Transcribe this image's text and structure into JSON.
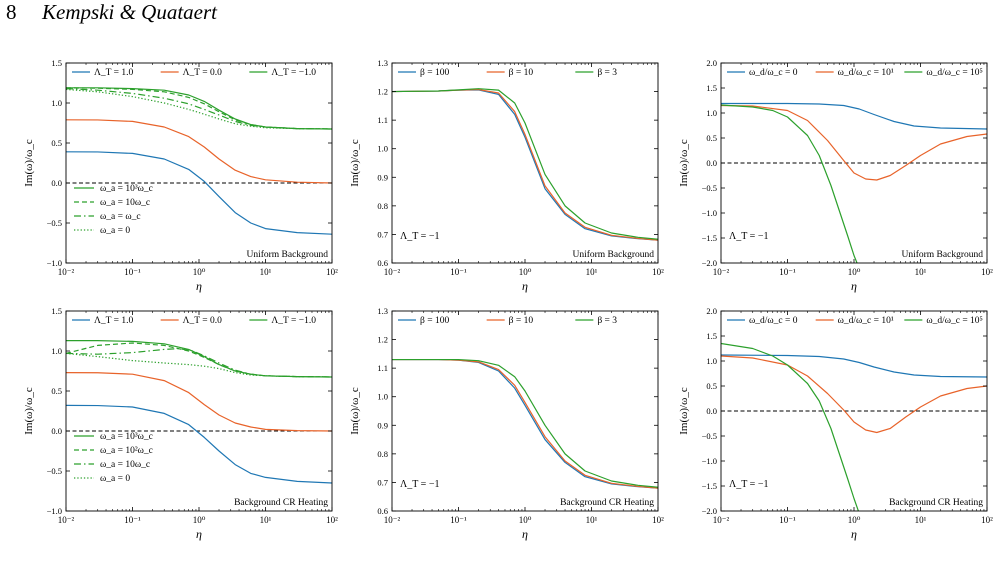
{
  "header": {
    "page_number": "8",
    "authors": "Kempski & Quataert"
  },
  "colors": {
    "blue": "#1f77b4",
    "orange": "#e8632a",
    "green": "#2ca02c",
    "zero_line": "#000000"
  },
  "chart_data": [
    {
      "type": "line",
      "xscale": "log",
      "xlim": [
        0.01,
        100
      ],
      "xticklabels": [
        "10⁻²",
        "10⁻¹",
        "10⁰",
        "10¹",
        "10²"
      ],
      "ylim": [
        -1.0,
        1.5
      ],
      "yticks": [
        -1.0,
        -0.5,
        0.0,
        0.5,
        1.0,
        1.5
      ],
      "yticklabels": [
        "−1.0",
        "−0.5",
        "0.0",
        "0.5",
        "1.0",
        "1.5"
      ],
      "xlabel": "η",
      "ylabel": "Im(ω)/ω_c",
      "legend_top": [
        "Λ_T = 1.0",
        "Λ_T = 0.0",
        "Λ_T = −1.0"
      ],
      "legend_styles": [
        "ω_a = 10³ω_c",
        "ω_a = 10ω_c",
        "ω_a = ω_c",
        "ω_a = 0"
      ],
      "annotation": "Uniform Background",
      "zero_line": true,
      "series": [
        {
          "name": "Λ_T = 1.0",
          "color": "blue",
          "dash": "solid",
          "x": [
            0.01,
            0.03,
            0.1,
            0.3,
            0.7,
            1.2,
            2,
            3.5,
            6,
            10,
            30,
            100
          ],
          "y": [
            0.39,
            0.388,
            0.37,
            0.3,
            0.17,
            0.02,
            -0.17,
            -0.37,
            -0.5,
            -0.57,
            -0.62,
            -0.64
          ]
        },
        {
          "name": "Λ_T = 0.0",
          "color": "orange",
          "dash": "solid",
          "x": [
            0.01,
            0.03,
            0.1,
            0.3,
            0.7,
            1.2,
            2,
            3.5,
            6,
            10,
            30,
            100
          ],
          "y": [
            0.79,
            0.788,
            0.77,
            0.7,
            0.58,
            0.45,
            0.3,
            0.16,
            0.08,
            0.04,
            0.01,
            0.0
          ]
        },
        {
          "name": "Λ_T = −1.0",
          "color": "green",
          "dash": "solid",
          "x": [
            0.01,
            0.03,
            0.1,
            0.3,
            0.7,
            1.2,
            2,
            3.5,
            6,
            10,
            30,
            100
          ],
          "y": [
            1.19,
            1.19,
            1.18,
            1.16,
            1.1,
            1.02,
            0.91,
            0.8,
            0.73,
            0.7,
            0.68,
            0.675
          ]
        },
        {
          "name": "ω_a = 10ω_c",
          "color": "green",
          "dash": "dashed",
          "x": [
            0.01,
            0.03,
            0.1,
            0.3,
            0.7,
            1.2,
            2,
            3.5,
            6,
            10,
            30,
            100
          ],
          "y": [
            1.19,
            1.185,
            1.17,
            1.14,
            1.07,
            0.99,
            0.89,
            0.79,
            0.73,
            0.7,
            0.68,
            0.675
          ]
        },
        {
          "name": "ω_a = ω_c",
          "color": "green",
          "dash": "dashdot",
          "x": [
            0.01,
            0.03,
            0.1,
            0.3,
            0.7,
            1.2,
            2,
            3.5,
            6,
            10,
            30,
            100
          ],
          "y": [
            1.18,
            1.16,
            1.12,
            1.06,
            0.99,
            0.92,
            0.85,
            0.77,
            0.72,
            0.7,
            0.68,
            0.675
          ]
        },
        {
          "name": "ω_a = 0",
          "color": "green",
          "dash": "dotted",
          "x": [
            0.01,
            0.03,
            0.1,
            0.3,
            0.7,
            1.2,
            2,
            3.5,
            6,
            10,
            30,
            100
          ],
          "y": [
            1.17,
            1.14,
            1.08,
            1.0,
            0.92,
            0.86,
            0.8,
            0.74,
            0.71,
            0.69,
            0.68,
            0.675
          ]
        }
      ]
    },
    {
      "type": "line",
      "xscale": "log",
      "xlim": [
        0.01,
        100
      ],
      "xticklabels": [
        "10⁻²",
        "10⁻¹",
        "10⁰",
        "10¹",
        "10²"
      ],
      "ylim": [
        0.6,
        1.3
      ],
      "yticks": [
        0.6,
        0.7,
        0.8,
        0.9,
        1.0,
        1.1,
        1.2,
        1.3
      ],
      "yticklabels": [
        "0.6",
        "0.7",
        "0.8",
        "0.9",
        "1.0",
        "1.1",
        "1.2",
        "1.3"
      ],
      "xlabel": "η",
      "ylabel": "Im(ω)/ω_c",
      "legend_top": [
        "β = 100",
        "β = 10",
        "β = 3"
      ],
      "annotation": "Uniform Background",
      "side_label": "Λ_T = −1",
      "zero_line": false,
      "series": [
        {
          "name": "β = 100",
          "color": "blue",
          "dash": "solid",
          "x": [
            0.01,
            0.05,
            0.1,
            0.2,
            0.4,
            0.7,
            1,
            2,
            4,
            8,
            20,
            50,
            100
          ],
          "y": [
            1.2,
            1.202,
            1.205,
            1.206,
            1.19,
            1.12,
            1.04,
            0.86,
            0.77,
            0.72,
            0.695,
            0.685,
            0.68
          ]
        },
        {
          "name": "β = 10",
          "color": "orange",
          "dash": "solid",
          "x": [
            0.01,
            0.05,
            0.1,
            0.2,
            0.4,
            0.7,
            1,
            2,
            4,
            8,
            20,
            50,
            100
          ],
          "y": [
            1.2,
            1.202,
            1.205,
            1.207,
            1.195,
            1.13,
            1.05,
            0.87,
            0.775,
            0.725,
            0.697,
            0.686,
            0.68
          ]
        },
        {
          "name": "β = 3",
          "color": "green",
          "dash": "solid",
          "x": [
            0.01,
            0.05,
            0.1,
            0.2,
            0.4,
            0.7,
            1,
            2,
            4,
            8,
            20,
            50,
            100
          ],
          "y": [
            1.2,
            1.202,
            1.206,
            1.21,
            1.205,
            1.16,
            1.09,
            0.91,
            0.8,
            0.74,
            0.705,
            0.69,
            0.683
          ]
        }
      ]
    },
    {
      "type": "line",
      "xscale": "log",
      "xlim": [
        0.01,
        100
      ],
      "xticklabels": [
        "10⁻²",
        "10⁻¹",
        "10⁰",
        "10¹",
        "10²"
      ],
      "ylim": [
        -2.0,
        2.0
      ],
      "yticks": [
        -2.0,
        -1.5,
        -1.0,
        -0.5,
        0.0,
        0.5,
        1.0,
        1.5,
        2.0
      ],
      "yticklabels": [
        "−2.0",
        "−1.5",
        "−1.0",
        "−0.5",
        "0.0",
        "0.5",
        "1.0",
        "1.5",
        "2.0"
      ],
      "xlabel": "η",
      "ylabel": "Im(ω)/ω_c",
      "legend_top": [
        "ω_d/ω_c = 0",
        "ω_d/ω_c = 10¹",
        "ω_d/ω_c = 10⁵"
      ],
      "annotation": "Uniform Background",
      "side_label": "Λ_T = −1",
      "zero_line": true,
      "series": [
        {
          "name": "ω_d/ω_c = 0",
          "color": "blue",
          "dash": "solid",
          "x": [
            0.01,
            0.1,
            0.3,
            0.7,
            1.2,
            2,
            4,
            8,
            20,
            100
          ],
          "y": [
            1.19,
            1.19,
            1.18,
            1.15,
            1.08,
            0.97,
            0.83,
            0.74,
            0.7,
            0.68
          ]
        },
        {
          "name": "ω_d/ω_c = 10¹",
          "color": "orange",
          "dash": "solid",
          "x": [
            0.01,
            0.03,
            0.1,
            0.2,
            0.4,
            0.7,
            1,
            1.5,
            2.2,
            3.5,
            6,
            10,
            20,
            50,
            100
          ],
          "y": [
            1.15,
            1.14,
            1.05,
            0.85,
            0.45,
            0.05,
            -0.2,
            -0.32,
            -0.34,
            -0.25,
            -0.05,
            0.15,
            0.38,
            0.53,
            0.58
          ]
        },
        {
          "name": "ω_d/ω_c = 10⁵",
          "color": "green",
          "dash": "solid",
          "x": [
            0.01,
            0.03,
            0.06,
            0.1,
            0.2,
            0.3,
            0.45,
            0.6,
            0.8,
            1.0,
            1.15
          ],
          "y": [
            1.16,
            1.12,
            1.05,
            0.92,
            0.55,
            0.15,
            -0.45,
            -0.95,
            -1.45,
            -1.85,
            -2.05
          ]
        }
      ]
    },
    {
      "type": "line",
      "xscale": "log",
      "xlim": [
        0.01,
        100
      ],
      "xticklabels": [
        "10⁻²",
        "10⁻¹",
        "10⁰",
        "10¹",
        "10²"
      ],
      "ylim": [
        -1.0,
        1.5
      ],
      "yticks": [
        -1.0,
        -0.5,
        0.0,
        0.5,
        1.0,
        1.5
      ],
      "yticklabels": [
        "−1.0",
        "−0.5",
        "0.0",
        "0.5",
        "1.0",
        "1.5"
      ],
      "xlabel": "η",
      "ylabel": "Im(ω)/ω_c",
      "legend_top": [
        "Λ_T = 1.0",
        "Λ_T = 0.0",
        "Λ_T = −1.0"
      ],
      "legend_styles": [
        "ω_a = 10³ω_c",
        "ω_a = 10²ω_c",
        "ω_a = 10ω_c",
        "ω_a = 0"
      ],
      "annotation": "Background CR Heating",
      "zero_line": true,
      "series": [
        {
          "name": "Λ_T = 1.0",
          "color": "blue",
          "dash": "solid",
          "x": [
            0.01,
            0.03,
            0.1,
            0.3,
            0.7,
            1.2,
            2,
            3.5,
            6,
            10,
            30,
            100
          ],
          "y": [
            0.32,
            0.318,
            0.3,
            0.22,
            0.08,
            -0.08,
            -0.25,
            -0.42,
            -0.53,
            -0.58,
            -0.63,
            -0.65
          ]
        },
        {
          "name": "Λ_T = 0.0",
          "color": "orange",
          "dash": "solid",
          "x": [
            0.01,
            0.03,
            0.1,
            0.3,
            0.7,
            1.2,
            2,
            3.5,
            6,
            10,
            30,
            100
          ],
          "y": [
            0.73,
            0.728,
            0.71,
            0.63,
            0.48,
            0.33,
            0.2,
            0.1,
            0.05,
            0.02,
            0.005,
            0.0
          ]
        },
        {
          "name": "Λ_T = −1.0",
          "color": "green",
          "dash": "solid",
          "x": [
            0.01,
            0.03,
            0.1,
            0.3,
            0.7,
            1.2,
            2,
            3.5,
            6,
            10,
            30,
            100
          ],
          "y": [
            1.13,
            1.13,
            1.12,
            1.09,
            1.02,
            0.93,
            0.83,
            0.75,
            0.71,
            0.69,
            0.68,
            0.675
          ]
        },
        {
          "name": "ω_a = 10²ω_c",
          "color": "green",
          "dash": "dashed",
          "x": [
            0.01,
            0.03,
            0.1,
            0.3,
            0.7,
            1.2,
            2,
            3.5,
            6,
            10,
            30,
            100
          ],
          "y": [
            0.97,
            1.07,
            1.1,
            1.07,
            1.0,
            0.92,
            0.83,
            0.75,
            0.71,
            0.69,
            0.68,
            0.675
          ]
        },
        {
          "name": "ω_a = 10ω_c",
          "color": "green",
          "dash": "dashdot",
          "x": [
            0.01,
            0.03,
            0.1,
            0.3,
            0.5,
            0.8,
            1.2,
            2,
            3.5,
            6,
            10,
            30,
            100
          ],
          "y": [
            0.97,
            0.96,
            0.98,
            1.02,
            1.03,
            1.0,
            0.94,
            0.85,
            0.76,
            0.71,
            0.69,
            0.68,
            0.675
          ]
        },
        {
          "name": "ω_a = 0",
          "color": "green",
          "dash": "dotted",
          "x": [
            0.01,
            0.03,
            0.1,
            0.3,
            0.7,
            1.2,
            2,
            3.5,
            6,
            10,
            30,
            100
          ],
          "y": [
            0.97,
            0.93,
            0.88,
            0.85,
            0.83,
            0.81,
            0.78,
            0.73,
            0.7,
            0.69,
            0.68,
            0.675
          ]
        }
      ]
    },
    {
      "type": "line",
      "xscale": "log",
      "xlim": [
        0.01,
        100
      ],
      "xticklabels": [
        "10⁻²",
        "10⁻¹",
        "10⁰",
        "10¹",
        "10²"
      ],
      "ylim": [
        0.6,
        1.3
      ],
      "yticks": [
        0.6,
        0.7,
        0.8,
        0.9,
        1.0,
        1.1,
        1.2,
        1.3
      ],
      "yticklabels": [
        "0.6",
        "0.7",
        "0.8",
        "0.9",
        "1.0",
        "1.1",
        "1.2",
        "1.3"
      ],
      "xlabel": "η",
      "ylabel": "Im(ω)/ω_c",
      "legend_top": [
        "β = 100",
        "β = 10",
        "β = 3"
      ],
      "annotation": "Background CR Heating",
      "side_label": "Λ_T = −1",
      "zero_line": false,
      "series": [
        {
          "name": "β = 100",
          "color": "blue",
          "dash": "solid",
          "x": [
            0.01,
            0.05,
            0.1,
            0.2,
            0.4,
            0.7,
            1,
            2,
            4,
            8,
            20,
            50,
            100
          ],
          "y": [
            1.13,
            1.13,
            1.128,
            1.12,
            1.09,
            1.03,
            0.97,
            0.85,
            0.77,
            0.72,
            0.695,
            0.685,
            0.68
          ]
        },
        {
          "name": "β = 10",
          "color": "orange",
          "dash": "solid",
          "x": [
            0.01,
            0.05,
            0.1,
            0.2,
            0.4,
            0.7,
            1,
            2,
            4,
            8,
            20,
            50,
            100
          ],
          "y": [
            1.13,
            1.13,
            1.128,
            1.122,
            1.095,
            1.04,
            0.98,
            0.86,
            0.775,
            0.725,
            0.697,
            0.686,
            0.68
          ]
        },
        {
          "name": "β = 3",
          "color": "green",
          "dash": "solid",
          "x": [
            0.01,
            0.05,
            0.1,
            0.2,
            0.4,
            0.7,
            1,
            2,
            4,
            8,
            20,
            50,
            100
          ],
          "y": [
            1.13,
            1.13,
            1.13,
            1.126,
            1.11,
            1.07,
            1.02,
            0.9,
            0.8,
            0.74,
            0.705,
            0.69,
            0.683
          ]
        }
      ]
    },
    {
      "type": "line",
      "xscale": "log",
      "xlim": [
        0.01,
        100
      ],
      "xticklabels": [
        "10⁻²",
        "10⁻¹",
        "10⁰",
        "10¹",
        "10²"
      ],
      "ylim": [
        -2.0,
        2.0
      ],
      "yticks": [
        -2.0,
        -1.5,
        -1.0,
        -0.5,
        0.0,
        0.5,
        1.0,
        1.5,
        2.0
      ],
      "yticklabels": [
        "−2.0",
        "−1.5",
        "−1.0",
        "−0.5",
        "0.0",
        "0.5",
        "1.0",
        "1.5",
        "2.0"
      ],
      "xlabel": "η",
      "ylabel": "Im(ω)/ω_c",
      "legend_top": [
        "ω_d/ω_c = 0",
        "ω_d/ω_c = 10¹",
        "ω_d/ω_c = 10⁵"
      ],
      "annotation": "Background CR Heating",
      "side_label": "Λ_T = −1",
      "zero_line": true,
      "series": [
        {
          "name": "ω_d/ω_c = 0",
          "color": "blue",
          "dash": "solid",
          "x": [
            0.01,
            0.1,
            0.3,
            0.7,
            1.2,
            2,
            4,
            8,
            20,
            100
          ],
          "y": [
            1.12,
            1.11,
            1.09,
            1.04,
            0.97,
            0.88,
            0.78,
            0.72,
            0.69,
            0.68
          ]
        },
        {
          "name": "ω_d/ω_c = 10¹",
          "color": "orange",
          "dash": "solid",
          "x": [
            0.01,
            0.03,
            0.1,
            0.2,
            0.4,
            0.7,
            1,
            1.5,
            2.2,
            3.5,
            6,
            10,
            20,
            50,
            100
          ],
          "y": [
            1.1,
            1.06,
            0.92,
            0.7,
            0.35,
            0.02,
            -0.22,
            -0.38,
            -0.43,
            -0.35,
            -0.12,
            0.08,
            0.3,
            0.45,
            0.5
          ]
        },
        {
          "name": "ω_d/ω_c = 10⁵",
          "color": "green",
          "dash": "solid",
          "x": [
            0.01,
            0.03,
            0.06,
            0.1,
            0.2,
            0.3,
            0.45,
            0.6,
            0.8,
            1.0,
            1.2
          ],
          "y": [
            1.35,
            1.25,
            1.1,
            0.92,
            0.55,
            0.2,
            -0.35,
            -0.85,
            -1.35,
            -1.75,
            -2.05
          ]
        }
      ]
    }
  ]
}
